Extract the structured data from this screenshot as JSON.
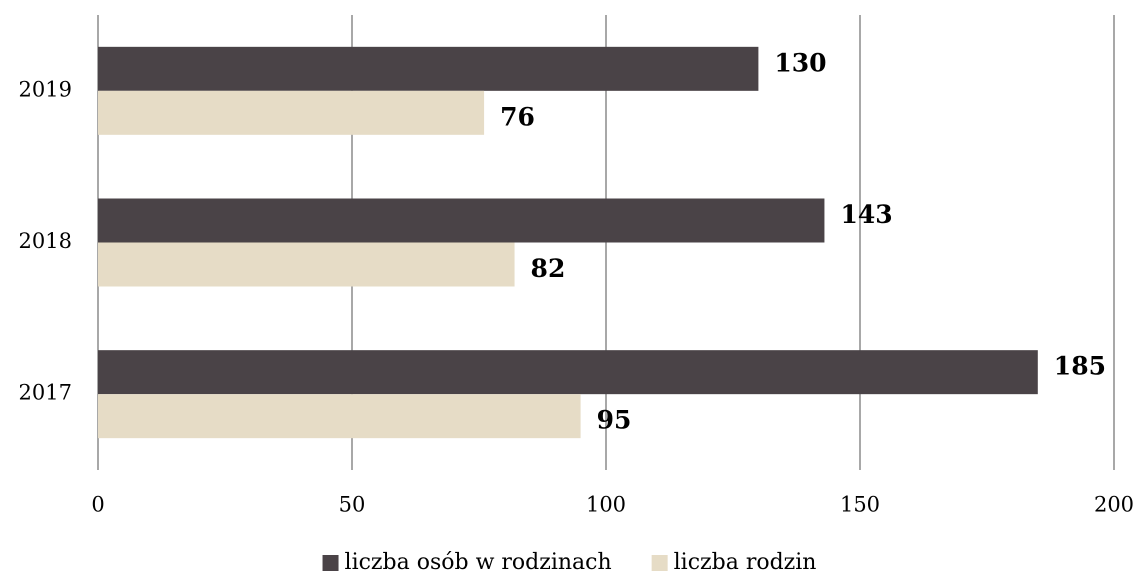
{
  "chart_data": {
    "type": "barh",
    "categories": [
      "2017",
      "2018",
      "2019"
    ],
    "series": [
      {
        "name": "liczba osób w rodzinach",
        "color": "#4a4347",
        "values": [
          185,
          143,
          130
        ]
      },
      {
        "name": "liczba rodzin",
        "color": "#e6dcc6",
        "values": [
          95,
          82,
          76
        ]
      }
    ],
    "xlim": [
      0,
      200
    ],
    "xticks": [
      0,
      50,
      100,
      150,
      200
    ],
    "grid": true,
    "legend": "bottom"
  }
}
